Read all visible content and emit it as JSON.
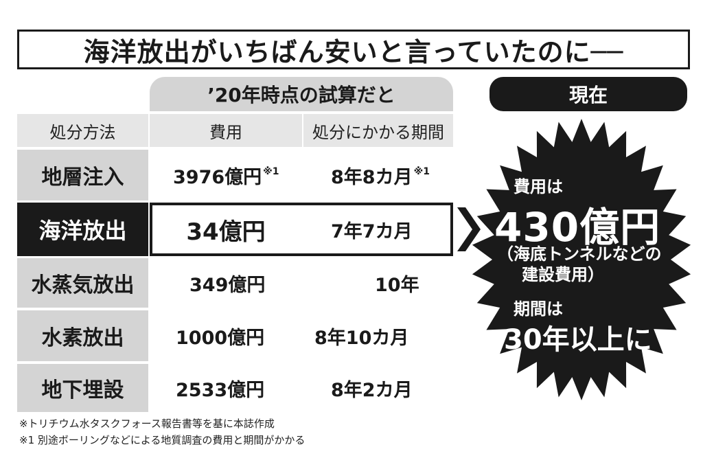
{
  "title": "海洋放出がいちばん安いと言っていたのに──",
  "calc_header": "’20年時点の試算だと",
  "columns": {
    "method": "処分方法",
    "cost": "費用",
    "period": "処分にかかる期間"
  },
  "rows": [
    {
      "method": "地層注入",
      "cost": "3976億円",
      "cost_note": "※1",
      "period": "8年8カ月",
      "period_note": "※1"
    },
    {
      "method": "海洋放出",
      "cost": "34億円",
      "period": "7年7カ月"
    },
    {
      "method": "水蒸気放出",
      "cost": "349億円",
      "period": "10年"
    },
    {
      "method": "水素放出",
      "cost": "1000億円",
      "period": "8年10カ月"
    },
    {
      "method": "地下埋設",
      "cost": "2533億円",
      "period": "8年2カ月"
    }
  ],
  "current": {
    "header": "現在",
    "cost_label": "費用は",
    "cost_value": "430億円",
    "cost_detail_1": "（海底トンネルなどの",
    "cost_detail_2": "建設費用）",
    "period_label": "期間は",
    "period_value": "30年以上に"
  },
  "footnotes": [
    "※トリチウム水タスクフォース報告書等を基に本誌作成",
    "※1 別途ボーリングなどによる地質調査の費用と期間がかかる"
  ],
  "colors": {
    "dark": "#1a1a1a",
    "gray": "#d4d4d4",
    "light_gray": "#e6e6e6"
  }
}
